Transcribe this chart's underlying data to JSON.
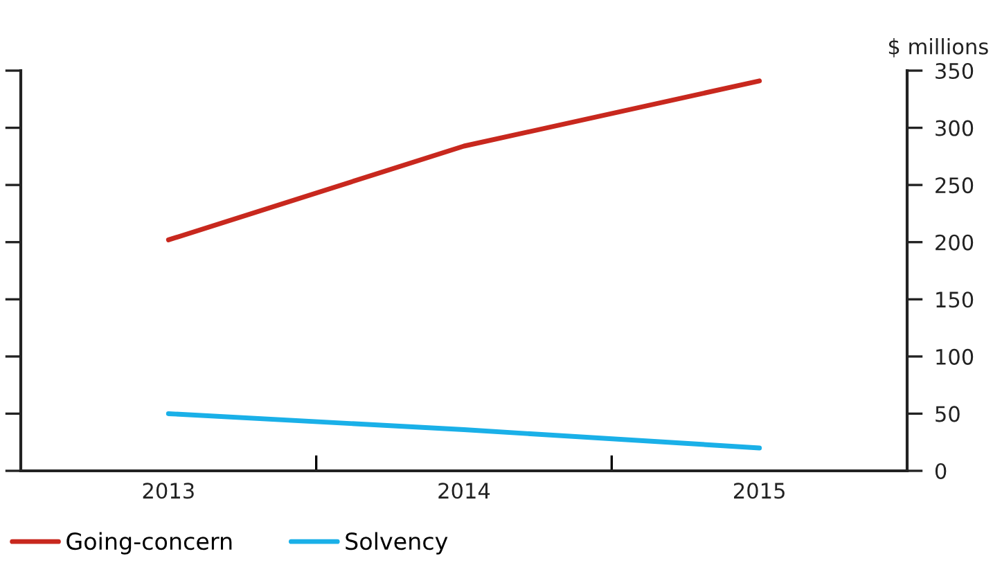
{
  "chart_data": {
    "type": "line",
    "ylabel": "$ millions",
    "categories": [
      "2013",
      "2014",
      "2015"
    ],
    "series": [
      {
        "name": "Going-concern",
        "color": "#c8281e",
        "values": [
          202,
          284,
          341
        ]
      },
      {
        "name": "Solvency",
        "color": "#1ab0e8",
        "values": [
          50,
          36,
          20
        ]
      }
    ],
    "ylim": [
      0,
      350
    ],
    "yticks": [
      0,
      50,
      100,
      150,
      200,
      250,
      300,
      350
    ],
    "grid": false,
    "legend": "bottom left",
    "marker": "none",
    "line_style": "solid"
  }
}
